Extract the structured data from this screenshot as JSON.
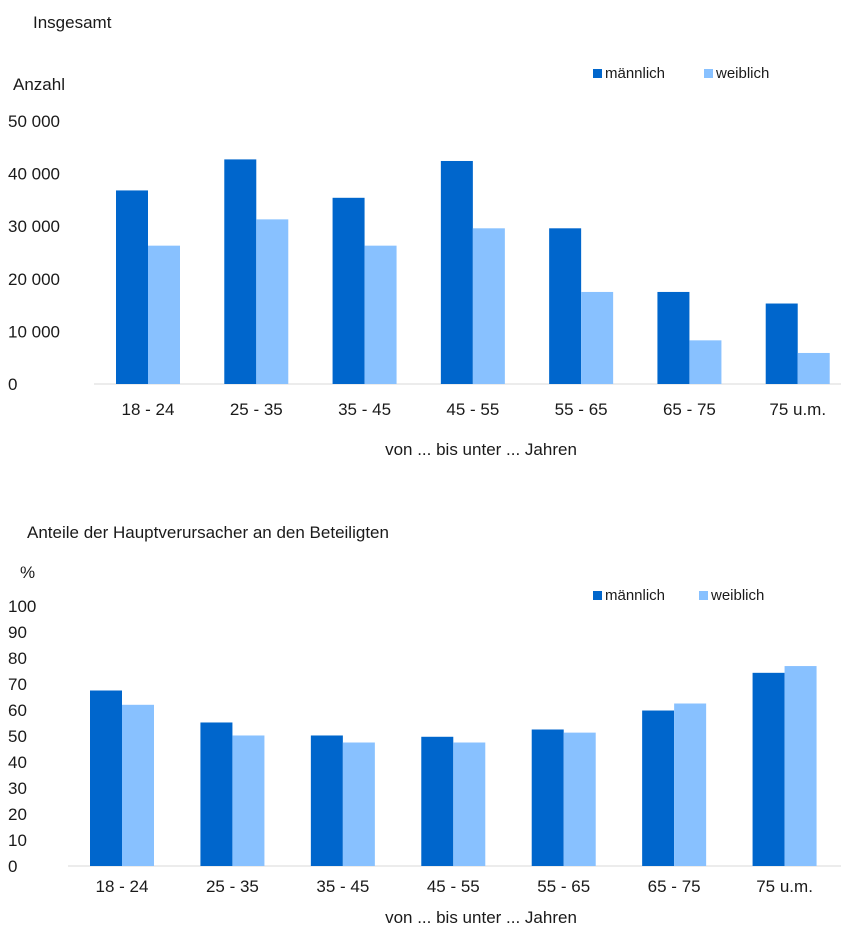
{
  "chart_data": [
    {
      "type": "bar",
      "title": "Insgesamt",
      "ylabel": "Anzahl",
      "xlabel": "von ... bis unter ... Jahren",
      "categories": [
        "18 - 24",
        "25 - 35",
        "35 - 45",
        "45 - 55",
        "55 - 65",
        "65 - 75",
        "75 u.m."
      ],
      "series": [
        {
          "name": "männlich",
          "color": "#0066cc",
          "values": [
            36800,
            42700,
            35400,
            42400,
            29600,
            17500,
            15300
          ]
        },
        {
          "name": "weiblich",
          "color": "#88c1ff",
          "values": [
            26300,
            31300,
            26300,
            29600,
            17500,
            8300,
            5900
          ]
        }
      ],
      "ylim": [
        0,
        50000
      ],
      "yticks": [
        0,
        10000,
        20000,
        30000,
        40000,
        50000
      ],
      "ytick_labels": [
        "0",
        "10 000",
        "20 000",
        "30 000",
        "40 000",
        "50 000"
      ],
      "legend_position": "top-right",
      "grid": false
    },
    {
      "type": "bar",
      "title": "Anteile der Hauptverursacher an den Beteiligten",
      "ylabel": "%",
      "xlabel": "von ... bis unter ... Jahren",
      "categories": [
        "18 - 24",
        "25 - 35",
        "35 - 45",
        "45 - 55",
        "55 - 65",
        "65 - 75",
        "75 u.m."
      ],
      "series": [
        {
          "name": "männlich",
          "color": "#0066cc",
          "values": [
            67.5,
            55.2,
            50.2,
            49.7,
            52.5,
            59.8,
            74.3
          ]
        },
        {
          "name": "weiblich",
          "color": "#88c1ff",
          "values": [
            62.0,
            50.2,
            47.5,
            47.5,
            51.3,
            62.5,
            76.9
          ]
        }
      ],
      "ylim": [
        0,
        100
      ],
      "yticks": [
        0,
        10,
        20,
        30,
        40,
        50,
        60,
        70,
        80,
        90,
        100
      ],
      "ytick_labels": [
        "0",
        "10",
        "20",
        "30",
        "40",
        "50",
        "60",
        "70",
        "80",
        "90",
        "100"
      ],
      "legend_position": "top-right",
      "grid": false
    }
  ]
}
